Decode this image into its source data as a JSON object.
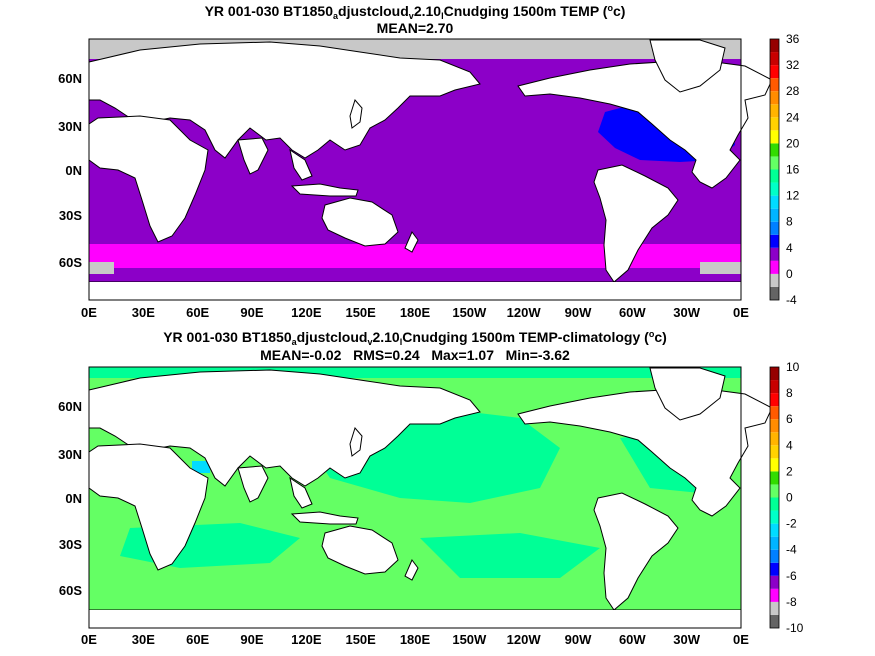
{
  "top": {
    "title_prefix": "YR 001-030 BT1850",
    "title_sub1": "a",
    "title_mid1": "djustcloud",
    "title_sub2": "v",
    "title_mid2": "2.10",
    "title_sub3": "l",
    "title_end": "Cnudging 1500m TEMP (",
    "title_sup": "o",
    "title_tail": "c)",
    "stats": "MEAN=2.70",
    "colorbar_labels": [
      "36",
      "32",
      "28",
      "24",
      "20",
      "16",
      "12",
      "8",
      "4",
      "0",
      "-4"
    ]
  },
  "bottom": {
    "title_prefix": "YR 001-030 BT1850",
    "title_sub1": "a",
    "title_mid1": "djustcloud",
    "title_sub2": "v",
    "title_mid2": "2.10",
    "title_sub3": "l",
    "title_end": "Cnudging 1500m TEMP-climatology (",
    "title_sup": "o",
    "title_tail": "c)",
    "stats": "MEAN=-0.02   RMS=0.24   Max=1.07   Min=-3.62",
    "colorbar_labels": [
      "10",
      "8",
      "6",
      "4",
      "2",
      "0",
      "-2",
      "-4",
      "-6",
      "-8",
      "-10"
    ]
  },
  "axes": {
    "x_labels": [
      "0E",
      "30E",
      "60E",
      "90E",
      "120E",
      "150E",
      "180E",
      "150W",
      "120W",
      "90W",
      "60W",
      "30W",
      "0E"
    ],
    "y_labels": [
      "60N",
      "30N",
      "0N",
      "30S",
      "60S"
    ]
  },
  "colors": {
    "colorbar": [
      "#646464",
      "#c8c8c8",
      "#ff00ff",
      "#8c00c8",
      "#0000ff",
      "#0080ff",
      "#00b4ff",
      "#00dcff",
      "#00ffc8",
      "#00ff96",
      "#64ff64",
      "#32dc00",
      "#ffff00",
      "#ffd200",
      "#ffb400",
      "#ff8c00",
      "#ff5a00",
      "#ff0000",
      "#c80000",
      "#960000"
    ],
    "top_ocean": "#8c00c8",
    "top_south": "#ff00ff",
    "top_atlantic": "#0000ff",
    "bottom_ocean": "#64ff64",
    "bottom_teal": "#00ff96",
    "land": "#ffffff",
    "missing": "#c8c8c8"
  }
}
